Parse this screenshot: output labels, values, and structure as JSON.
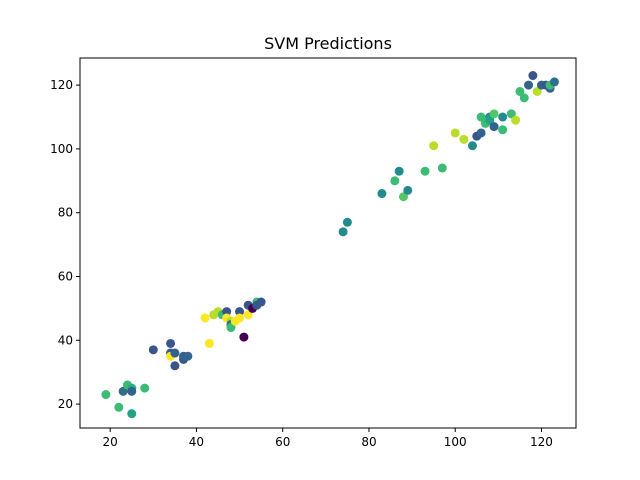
{
  "chart_data": {
    "type": "scatter",
    "title": "SVM Predictions",
    "xlabel": "",
    "ylabel": "",
    "xlim": [
      13,
      128
    ],
    "ylim": [
      12.5,
      128.5
    ],
    "xticks": [
      20,
      40,
      60,
      80,
      100,
      120
    ],
    "yticks": [
      20,
      40,
      60,
      80,
      100,
      120
    ],
    "grid": false,
    "colormap": "viridis",
    "points": [
      {
        "x": 19,
        "y": 23,
        "color": "#3cbb75"
      },
      {
        "x": 22,
        "y": 19,
        "color": "#3cbb75"
      },
      {
        "x": 23,
        "y": 24,
        "color": "#2d708e"
      },
      {
        "x": 24,
        "y": 26,
        "color": "#3cbb75"
      },
      {
        "x": 25,
        "y": 25,
        "color": "#29af7f"
      },
      {
        "x": 25,
        "y": 24,
        "color": "#33638d"
      },
      {
        "x": 25,
        "y": 17,
        "color": "#20a386"
      },
      {
        "x": 28,
        "y": 25,
        "color": "#3cbb75"
      },
      {
        "x": 30,
        "y": 37,
        "color": "#39568c"
      },
      {
        "x": 34,
        "y": 39,
        "color": "#39568c"
      },
      {
        "x": 34,
        "y": 36,
        "color": "#39568c"
      },
      {
        "x": 34,
        "y": 35,
        "color": "#fde725"
      },
      {
        "x": 35,
        "y": 36,
        "color": "#33638d"
      },
      {
        "x": 35,
        "y": 32,
        "color": "#39568c"
      },
      {
        "x": 37,
        "y": 34,
        "color": "#39568c"
      },
      {
        "x": 37,
        "y": 35,
        "color": "#33638d"
      },
      {
        "x": 38,
        "y": 35,
        "color": "#33638d"
      },
      {
        "x": 42,
        "y": 47,
        "color": "#fde725"
      },
      {
        "x": 43,
        "y": 39,
        "color": "#fde725"
      },
      {
        "x": 44,
        "y": 48,
        "color": "#b8de29"
      },
      {
        "x": 45,
        "y": 49,
        "color": "#b8de29"
      },
      {
        "x": 46,
        "y": 48,
        "color": "#3cbb75"
      },
      {
        "x": 47,
        "y": 49,
        "color": "#39568c"
      },
      {
        "x": 47,
        "y": 47,
        "color": "#fde725"
      },
      {
        "x": 48,
        "y": 46,
        "color": "#b8de29"
      },
      {
        "x": 48,
        "y": 45,
        "color": "#2d708e"
      },
      {
        "x": 48,
        "y": 44,
        "color": "#3cbb75"
      },
      {
        "x": 49,
        "y": 46,
        "color": "#fde725"
      },
      {
        "x": 50,
        "y": 49,
        "color": "#39568c"
      },
      {
        "x": 50,
        "y": 47,
        "color": "#fde725"
      },
      {
        "x": 51,
        "y": 41,
        "color": "#440154"
      },
      {
        "x": 52,
        "y": 51,
        "color": "#39568c"
      },
      {
        "x": 52,
        "y": 48,
        "color": "#fde725"
      },
      {
        "x": 53,
        "y": 50,
        "color": "#440154"
      },
      {
        "x": 54,
        "y": 52,
        "color": "#3cbb75"
      },
      {
        "x": 54,
        "y": 51,
        "color": "#39568c"
      },
      {
        "x": 55,
        "y": 52,
        "color": "#39568c"
      },
      {
        "x": 74,
        "y": 74,
        "color": "#238a8d"
      },
      {
        "x": 75,
        "y": 77,
        "color": "#238a8d"
      },
      {
        "x": 83,
        "y": 86,
        "color": "#238a8d"
      },
      {
        "x": 86,
        "y": 90,
        "color": "#3cbb75"
      },
      {
        "x": 87,
        "y": 93,
        "color": "#238a8d"
      },
      {
        "x": 88,
        "y": 85,
        "color": "#55c667"
      },
      {
        "x": 89,
        "y": 87,
        "color": "#238a8d"
      },
      {
        "x": 93,
        "y": 93,
        "color": "#3cbb75"
      },
      {
        "x": 95,
        "y": 101,
        "color": "#b8de29"
      },
      {
        "x": 97,
        "y": 94,
        "color": "#3cbb75"
      },
      {
        "x": 100,
        "y": 105,
        "color": "#b8de29"
      },
      {
        "x": 102,
        "y": 103,
        "color": "#b8de29"
      },
      {
        "x": 104,
        "y": 101,
        "color": "#238a8d"
      },
      {
        "x": 105,
        "y": 104,
        "color": "#39568c"
      },
      {
        "x": 106,
        "y": 110,
        "color": "#3cbb75"
      },
      {
        "x": 106,
        "y": 105,
        "color": "#33638d"
      },
      {
        "x": 107,
        "y": 108,
        "color": "#3cbb75"
      },
      {
        "x": 108,
        "y": 110,
        "color": "#238a8d"
      },
      {
        "x": 108,
        "y": 109,
        "color": "#20a386"
      },
      {
        "x": 109,
        "y": 111,
        "color": "#55c667"
      },
      {
        "x": 109,
        "y": 107,
        "color": "#33638d"
      },
      {
        "x": 111,
        "y": 110,
        "color": "#238a8d"
      },
      {
        "x": 111,
        "y": 106,
        "color": "#3cbb75"
      },
      {
        "x": 113,
        "y": 111,
        "color": "#3cbb75"
      },
      {
        "x": 114,
        "y": 109,
        "color": "#b8de29"
      },
      {
        "x": 115,
        "y": 118,
        "color": "#3cbb75"
      },
      {
        "x": 116,
        "y": 116,
        "color": "#3cbb75"
      },
      {
        "x": 117,
        "y": 120,
        "color": "#33638d"
      },
      {
        "x": 118,
        "y": 123,
        "color": "#39568c"
      },
      {
        "x": 119,
        "y": 118,
        "color": "#b8de29"
      },
      {
        "x": 120,
        "y": 120,
        "color": "#33638d"
      },
      {
        "x": 121,
        "y": 120,
        "color": "#39568c"
      },
      {
        "x": 122,
        "y": 119,
        "color": "#33638d"
      },
      {
        "x": 122,
        "y": 120,
        "color": "#3cbb75"
      },
      {
        "x": 123,
        "y": 121,
        "color": "#2d708e"
      }
    ]
  }
}
